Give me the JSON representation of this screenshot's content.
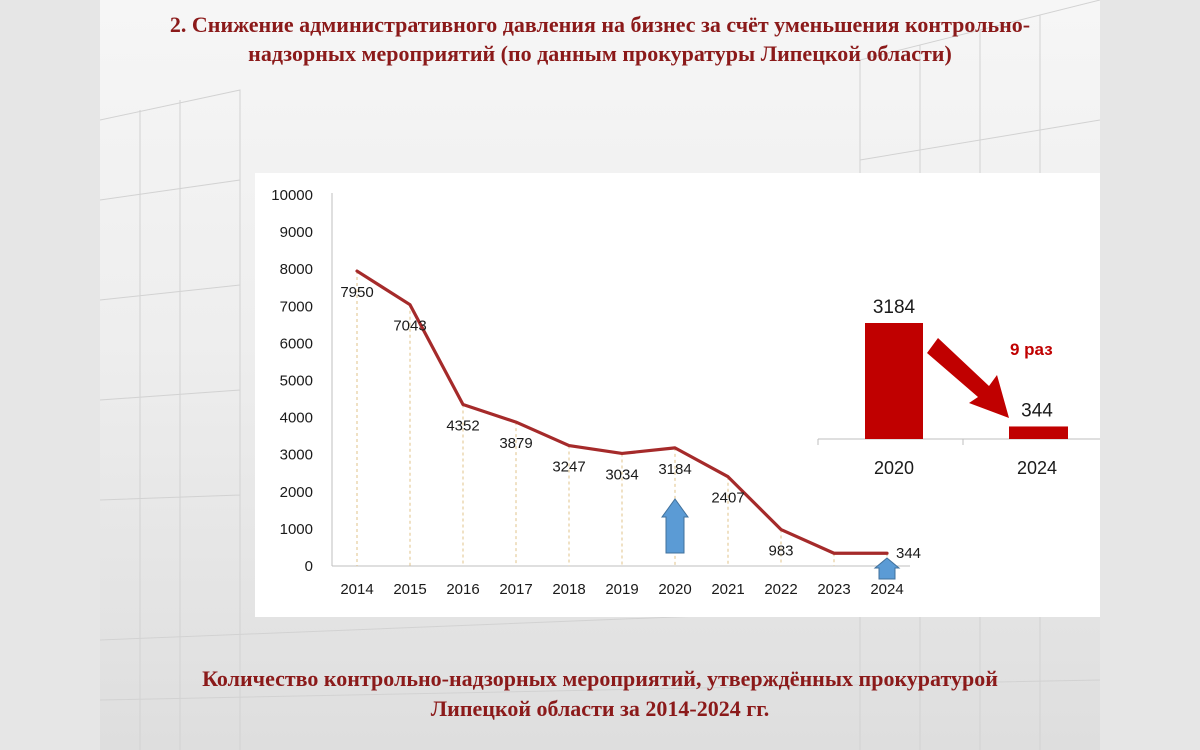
{
  "slide": {
    "title": "2. Снижение административного давления на бизнес за счёт уменьшения контрольно-надзорных мероприятий (по данным прокуратуры Липецкой области)",
    "caption": "Количество контрольно-надзорных мероприятий, утверждённых прокуратурой Липецкой области за 2014-2024 гг."
  },
  "colors": {
    "title": "#8b1a1a",
    "line": "#a52a2a",
    "bar": "#c00000",
    "arrow_up": "#5b9bd5",
    "ratio_text": "#c00000"
  },
  "chart_data": [
    {
      "type": "line",
      "x": [
        "2014",
        "2015",
        "2016",
        "2017",
        "2018",
        "2019",
        "2020",
        "2021",
        "2022",
        "2023",
        "2024"
      ],
      "series": [
        {
          "values": [
            7950,
            7043,
            4352,
            3879,
            3247,
            3034,
            3184,
            2407,
            983,
            344,
            344
          ]
        }
      ],
      "point_labels": [
        "7950",
        "7043",
        "4352",
        "3879",
        "3247",
        "3034",
        "3184",
        "2407",
        "983",
        "",
        "344"
      ],
      "yticks": [
        "0",
        "1000",
        "2000",
        "3000",
        "4000",
        "5000",
        "6000",
        "7000",
        "8000",
        "9000",
        "10000"
      ],
      "ylim": [
        0,
        10000
      ],
      "grid": false,
      "marked_categories": [
        "2020",
        "2024"
      ]
    },
    {
      "type": "bar",
      "categories": [
        "2020",
        "2024"
      ],
      "values": [
        3184,
        344
      ],
      "value_labels": [
        "3184",
        "344"
      ],
      "annotation": "9 раз"
    }
  ]
}
